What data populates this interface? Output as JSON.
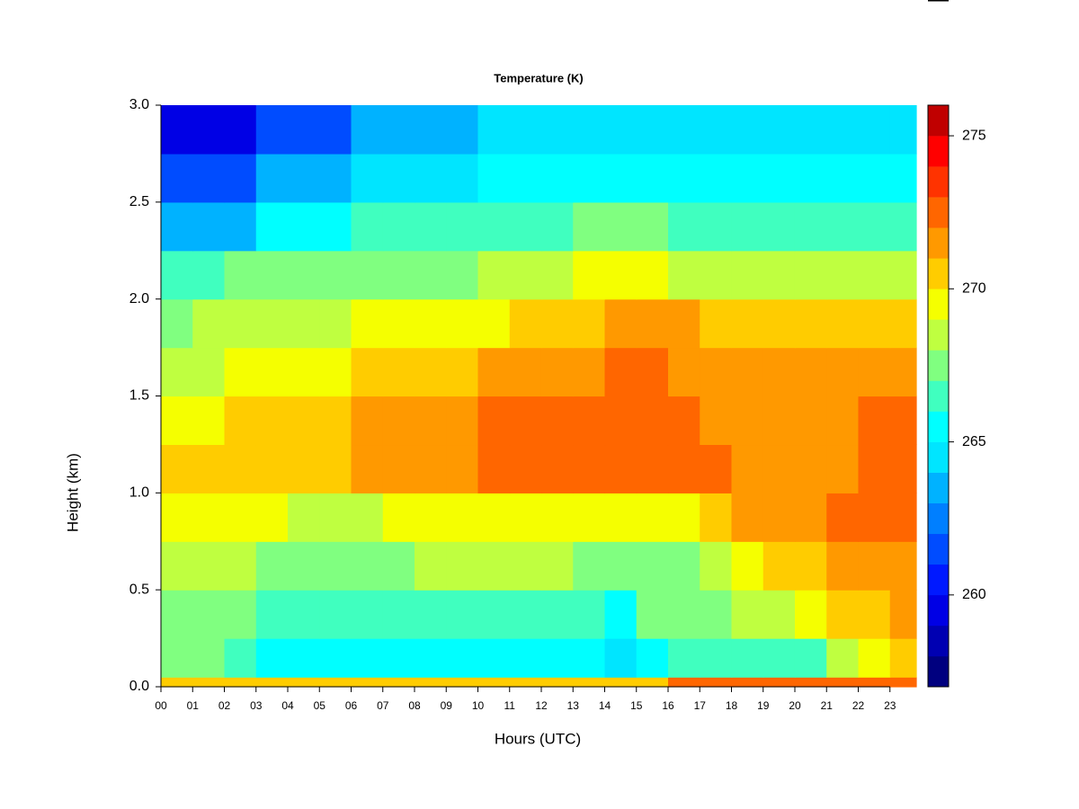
{
  "chart_data": {
    "type": "heatmap",
    "title": "Temperature (K)",
    "xlabel": "Hours (UTC)",
    "ylabel": "Height (km)",
    "xlim": [
      0,
      23.83
    ],
    "ylim": [
      0,
      3
    ],
    "xbins": [
      0,
      1,
      2,
      3,
      4,
      5,
      6,
      7,
      8,
      9,
      10,
      11,
      12,
      13,
      14,
      15,
      16,
      17,
      18,
      19,
      20,
      21,
      22,
      23,
      23.83
    ],
    "ybins": [
      0,
      0.05,
      0.25,
      0.5,
      0.75,
      1.0,
      1.25,
      1.5,
      1.75,
      2.0,
      2.25,
      2.5,
      2.75,
      3.0
    ],
    "z": [
      [
        270,
        270,
        270,
        270,
        270,
        270,
        270,
        270,
        270,
        270,
        270,
        270,
        270,
        270,
        270,
        270,
        272,
        272,
        272,
        272,
        272,
        272,
        272,
        272
      ],
      [
        267,
        267,
        266,
        265,
        265,
        265,
        265,
        265,
        265,
        265,
        265,
        265,
        265,
        265,
        264,
        265,
        266,
        266,
        266,
        266,
        266,
        268,
        269,
        270
      ],
      [
        267,
        267,
        267,
        266,
        266,
        266,
        266,
        266,
        266,
        266,
        266,
        266,
        266,
        266,
        265,
        267,
        267,
        267,
        268,
        268,
        269,
        270,
        270,
        271
      ],
      [
        268,
        268,
        268,
        267,
        267,
        267,
        267,
        267,
        268,
        268,
        268,
        268,
        268,
        267,
        267,
        267,
        267,
        268,
        269,
        270,
        270,
        271,
        271,
        271
      ],
      [
        269,
        269,
        269,
        269,
        268,
        268,
        268,
        269,
        269,
        269,
        269,
        269,
        269,
        269,
        269,
        269,
        269,
        270,
        271,
        271,
        271,
        272,
        272,
        272
      ],
      [
        270,
        270,
        270,
        270,
        270,
        270,
        271,
        271,
        271,
        271,
        272,
        272,
        272,
        272,
        272,
        272,
        272,
        272,
        271,
        271,
        271,
        271,
        272,
        272
      ],
      [
        269,
        269,
        270,
        270,
        270,
        270,
        271,
        271,
        271,
        271,
        272,
        272,
        272,
        272,
        272,
        272,
        272,
        271,
        271,
        271,
        271,
        271,
        272,
        272
      ],
      [
        268,
        268,
        269,
        269,
        269,
        269,
        270,
        270,
        270,
        270,
        271,
        271,
        271,
        271,
        272,
        272,
        271,
        271,
        271,
        271,
        271,
        271,
        271,
        271
      ],
      [
        267,
        268,
        268,
        268,
        268,
        268,
        269,
        269,
        269,
        269,
        269,
        270,
        270,
        270,
        271,
        271,
        271,
        270,
        270,
        270,
        270,
        270,
        270,
        270
      ],
      [
        266,
        266,
        267,
        267,
        267,
        267,
        267,
        267,
        267,
        267,
        268,
        268,
        268,
        269,
        269,
        269,
        268,
        268,
        268,
        268,
        268,
        268,
        268,
        268
      ],
      [
        263,
        263,
        263,
        265,
        265,
        265,
        266,
        266,
        266,
        266,
        266,
        266,
        266,
        267,
        267,
        267,
        266,
        266,
        266,
        266,
        266,
        266,
        266,
        266
      ],
      [
        261,
        261,
        261,
        263,
        263,
        263,
        264,
        264,
        264,
        264,
        265,
        265,
        265,
        265,
        265,
        265,
        265,
        265,
        265,
        265,
        265,
        265,
        265,
        265
      ],
      [
        259,
        259,
        259,
        261,
        261,
        261,
        263,
        263,
        263,
        263,
        264,
        264,
        264,
        264,
        264,
        264,
        264,
        264,
        264,
        264,
        264,
        264,
        264,
        264
      ]
    ],
    "xticks": [
      {
        "value": 0,
        "label": "00"
      },
      {
        "value": 1,
        "label": "01"
      },
      {
        "value": 2,
        "label": "02"
      },
      {
        "value": 3,
        "label": "03"
      },
      {
        "value": 4,
        "label": "04"
      },
      {
        "value": 5,
        "label": "05"
      },
      {
        "value": 6,
        "label": "06"
      },
      {
        "value": 7,
        "label": "07"
      },
      {
        "value": 8,
        "label": "08"
      },
      {
        "value": 9,
        "label": "09"
      },
      {
        "value": 10,
        "label": "10"
      },
      {
        "value": 11,
        "label": "11"
      },
      {
        "value": 12,
        "label": "12"
      },
      {
        "value": 13,
        "label": "13"
      },
      {
        "value": 14,
        "label": "14"
      },
      {
        "value": 15,
        "label": "15"
      },
      {
        "value": 16,
        "label": "16"
      },
      {
        "value": 17,
        "label": "17"
      },
      {
        "value": 18,
        "label": "18"
      },
      {
        "value": 19,
        "label": "19"
      },
      {
        "value": 20,
        "label": "20"
      },
      {
        "value": 21,
        "label": "21"
      },
      {
        "value": 22,
        "label": "22"
      },
      {
        "value": 23,
        "label": "23"
      }
    ],
    "yticks": [
      {
        "value": 0,
        "label": "0.0"
      },
      {
        "value": 0.5,
        "label": "0.5"
      },
      {
        "value": 1,
        "label": "1.0"
      },
      {
        "value": 1.5,
        "label": "1.5"
      },
      {
        "value": 2,
        "label": "2.0"
      },
      {
        "value": 2.5,
        "label": "2.5"
      },
      {
        "value": 3,
        "label": "3.0"
      }
    ],
    "colorbar": {
      "levels": [
        257,
        258,
        259,
        260,
        261,
        262,
        263,
        264,
        265,
        266,
        267,
        268,
        269,
        270,
        271,
        272,
        273,
        274,
        275,
        276
      ],
      "colors": [
        "#00007f",
        "#0000b2",
        "#0000e5",
        "#0019ff",
        "#004cff",
        "#007fff",
        "#00b2ff",
        "#00e5ff",
        "#00ffff",
        "#40ffbf",
        "#80ff80",
        "#bfff40",
        "#f5ff00",
        "#ffcc00",
        "#ff9900",
        "#ff6600",
        "#ff3300",
        "#ff0000",
        "#c00000"
      ],
      "ticks": [
        260,
        265,
        270,
        275
      ]
    }
  }
}
